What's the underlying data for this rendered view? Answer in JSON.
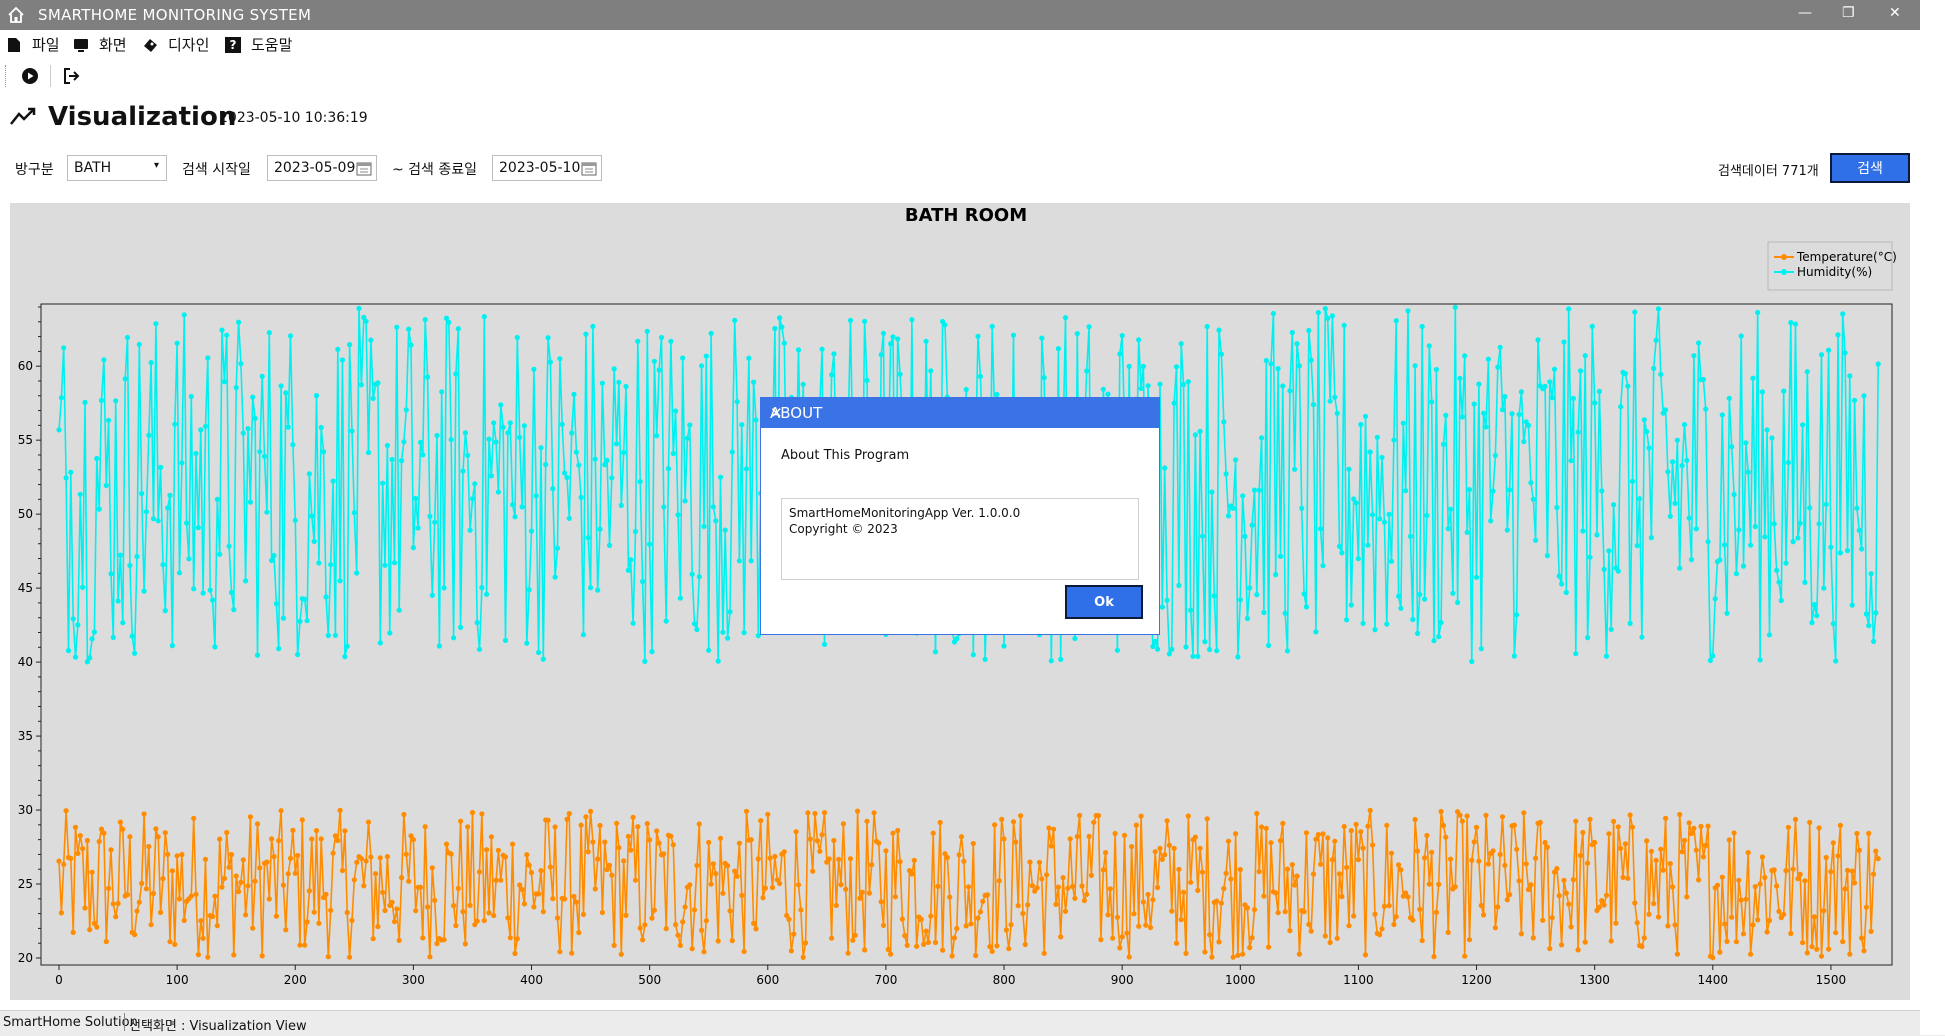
{
  "window": {
    "title": "SMARTHOME MONITORING SYSTEM",
    "controls": {
      "minimize": "—",
      "restore": "❐",
      "close": "✕"
    }
  },
  "menu": [
    {
      "label": "파일",
      "icon": "file-icon"
    },
    {
      "label": "화면",
      "icon": "monitor-icon"
    },
    {
      "label": "디자인",
      "icon": "palette-icon"
    },
    {
      "label": "도움말",
      "icon": "help-icon"
    }
  ],
  "toolbar": {
    "play_icon": "play-circle-icon",
    "exit_icon": "exit-icon"
  },
  "header": {
    "title": "Visualization",
    "timestamp": "2023-05-10 10:36:19",
    "icon": "chart-trend-icon"
  },
  "filters": {
    "room_label": "방구분",
    "room_value": "BATH",
    "start_label": "검색 시작일",
    "start_value": "2023-05-09",
    "end_label": "~ 검색 종료일",
    "end_value": "2023-05-10",
    "count_text": "검색데이터 771개",
    "search_label": "검색"
  },
  "chart_data": {
    "type": "line",
    "title": "BATH ROOM",
    "xlim": [
      0,
      1550
    ],
    "ylim": [
      20,
      64
    ],
    "xticks": [
      0,
      100,
      200,
      300,
      400,
      500,
      600,
      700,
      800,
      900,
      1000,
      1100,
      1200,
      1300,
      1400,
      1500
    ],
    "yticks": [
      20,
      25,
      30,
      35,
      40,
      45,
      50,
      55,
      60
    ],
    "legend_position": "top-right",
    "grid": false,
    "series": [
      {
        "name": "Temperature(°C)",
        "color": "#ff8c00",
        "range": [
          20,
          30
        ],
        "sample_count": 771,
        "x_step": 2
      },
      {
        "name": "Humidity(%)",
        "color": "#00f0f0",
        "range": [
          40,
          64
        ],
        "sample_count": 771,
        "x_step": 2
      }
    ]
  },
  "dialog": {
    "title": "ABOUT",
    "heading": "About This Program",
    "line1": "SmartHomeMonitoringApp Ver. 1.0.0.0",
    "line2": "Copyright ©  2023",
    "ok_label": "Ok"
  },
  "status": {
    "app": "SmartHome Solution",
    "view": "선택화면 : Visualization View"
  }
}
